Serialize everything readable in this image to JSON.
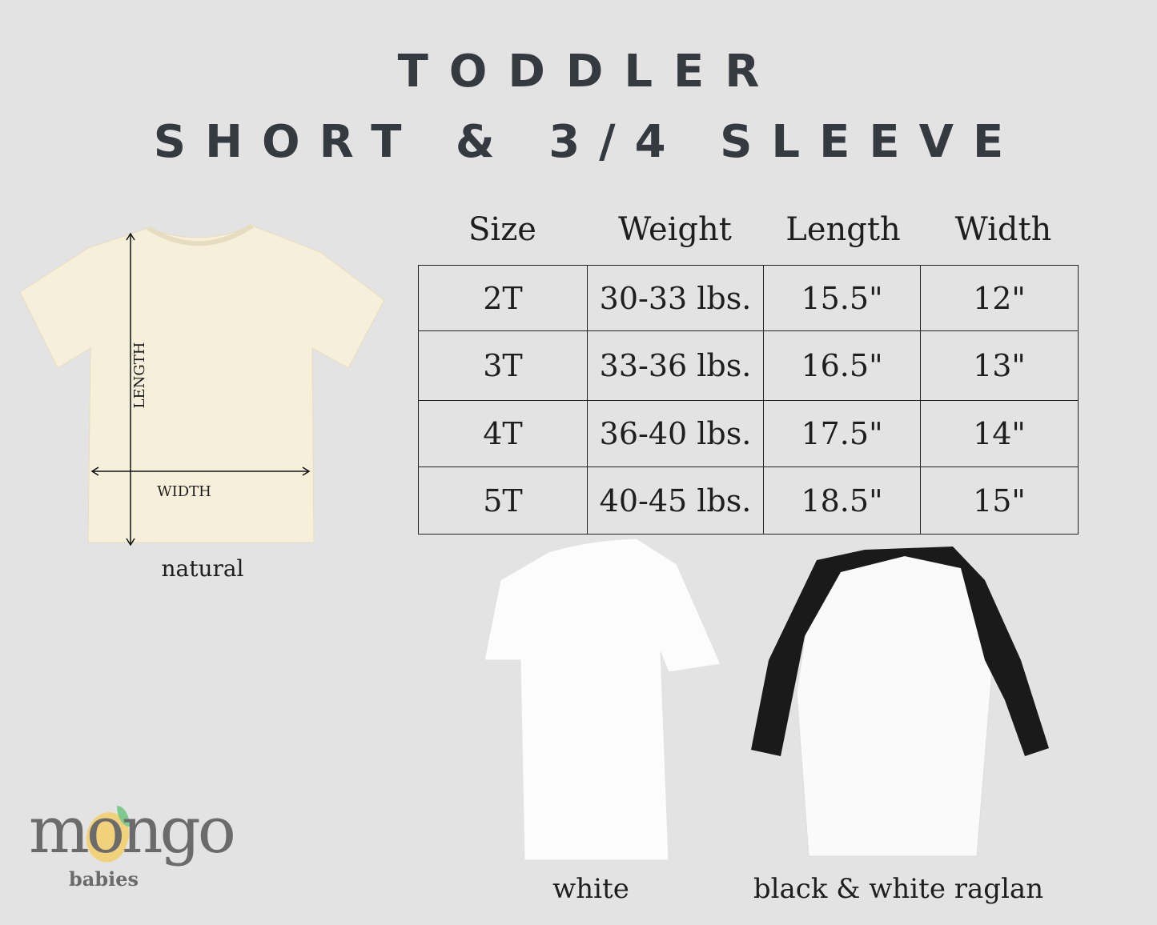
{
  "title": {
    "line1": "TODDLER",
    "line2": "SHORT & 3/4 SLEEVE"
  },
  "size_table": {
    "headers": [
      "Size",
      "Weight",
      "Length",
      "Width"
    ],
    "rows": [
      [
        "2T",
        "30-33 lbs.",
        "15.5\"",
        "12\""
      ],
      [
        "3T",
        "33-36 lbs.",
        "16.5\"",
        "13\""
      ],
      [
        "4T",
        "36-40 lbs.",
        "17.5\"",
        "14\""
      ],
      [
        "5T",
        "40-45 lbs.",
        "18.5\"",
        "15\""
      ]
    ]
  },
  "diagram": {
    "length_label": "LENGTH",
    "width_label": "WIDTH"
  },
  "products": [
    {
      "label": "natural",
      "color": "#f6efd9"
    },
    {
      "label": "white",
      "color": "#ffffff"
    },
    {
      "label": "black & white raglan",
      "color": "#1a1a1a"
    }
  ],
  "logo": {
    "brand": "mongo",
    "sub": "babies"
  }
}
